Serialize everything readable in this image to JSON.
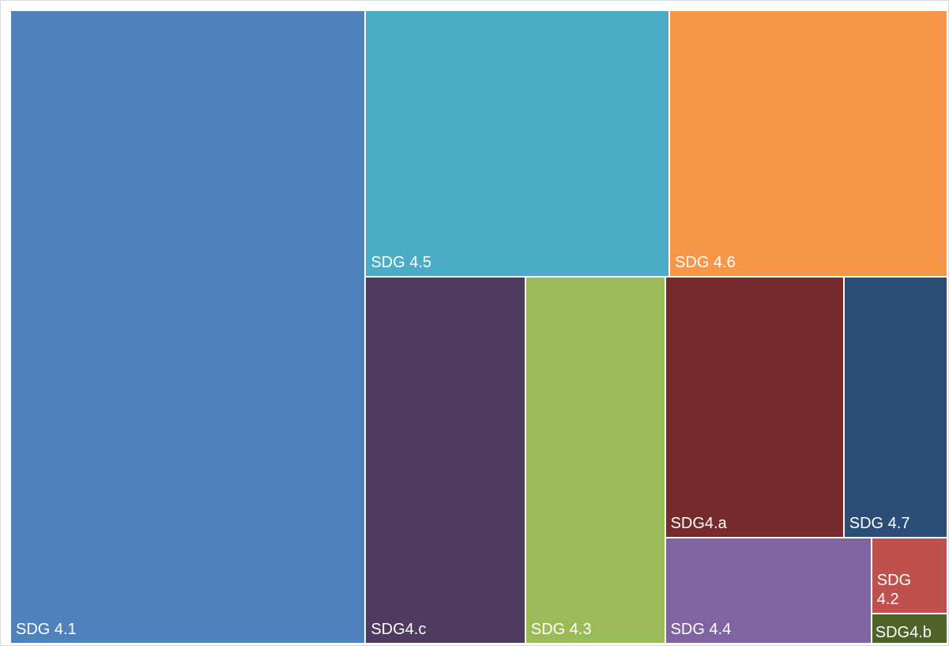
{
  "chart_data": {
    "type": "treemap",
    "items": [
      {
        "label": "SDG 4.1",
        "value": 391,
        "color": "#4F81BD"
      },
      {
        "label": "SDG 4.5",
        "value": 141,
        "color": "#4BACC6"
      },
      {
        "label": "SDG 4.6",
        "value": 129,
        "color": "#F79646"
      },
      {
        "label": "SDG4.c",
        "value": 102,
        "color": "#4F3B60"
      },
      {
        "label": "SDG 4.3",
        "value": 89,
        "color": "#9BBB59"
      },
      {
        "label": "SDG4.a",
        "value": 81,
        "color": "#772A2B"
      },
      {
        "label": "SDG 4.7",
        "value": 47,
        "color": "#2C4D75"
      },
      {
        "label": "SDG 4.4",
        "value": 38,
        "color": "#8064A2"
      },
      {
        "label": "SDG 4.2",
        "value": 10,
        "color": "#C0504D"
      },
      {
        "label": "SDG4.b",
        "value": 4,
        "color": "#4F6228"
      }
    ]
  }
}
